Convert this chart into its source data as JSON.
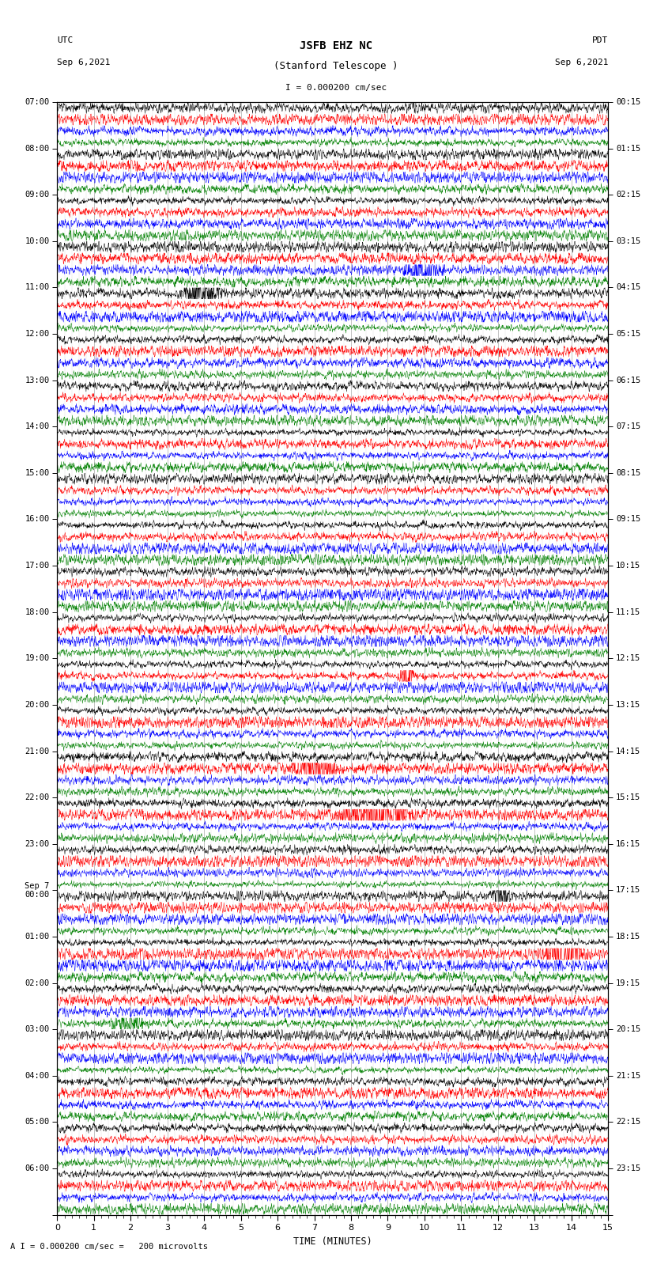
{
  "title_line1": "JSFB EHZ NC",
  "title_line2": "(Stanford Telescope )",
  "scale_text": "I = 0.000200 cm/sec",
  "bottom_text": "A I = 0.000200 cm/sec =   200 microvolts",
  "utc_label": "UTC",
  "utc_date": "Sep 6,2021",
  "pdt_label": "PDT",
  "pdt_date": "Sep 6,2021",
  "xlabel": "TIME (MINUTES)",
  "left_times": [
    "07:00",
    "08:00",
    "09:00",
    "10:00",
    "11:00",
    "12:00",
    "13:00",
    "14:00",
    "15:00",
    "16:00",
    "17:00",
    "18:00",
    "19:00",
    "20:00",
    "21:00",
    "22:00",
    "23:00",
    "Sep 7\n00:00",
    "01:00",
    "02:00",
    "03:00",
    "04:00",
    "05:00",
    "06:00"
  ],
  "right_times": [
    "00:15",
    "01:15",
    "02:15",
    "03:15",
    "04:15",
    "05:15",
    "06:15",
    "07:15",
    "08:15",
    "09:15",
    "10:15",
    "11:15",
    "12:15",
    "13:15",
    "14:15",
    "15:15",
    "16:15",
    "17:15",
    "18:15",
    "19:15",
    "20:15",
    "21:15",
    "22:15",
    "23:15"
  ],
  "num_groups": 24,
  "traces_per_group": 4,
  "row_colors": [
    "black",
    "red",
    "blue",
    "green"
  ],
  "bg_color": "white",
  "fig_width": 8.5,
  "fig_height": 16.13,
  "xmin": 0,
  "xmax": 15,
  "noise_amplitude_base": 0.3,
  "seed": 12345,
  "vertical_grid_minor_color": "#aaaaaa",
  "vertical_grid_major_color": "#888888"
}
